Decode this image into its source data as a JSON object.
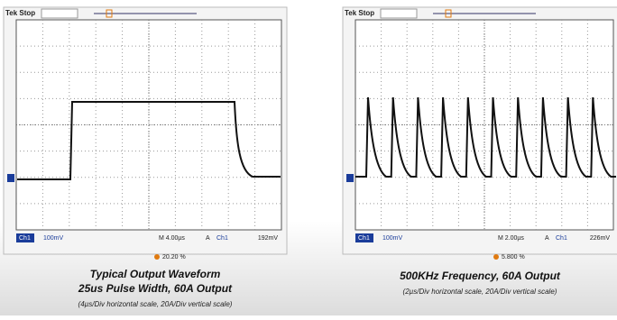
{
  "left": {
    "header": "Tek Stop",
    "channel": "Ch1",
    "volts": "100mV",
    "timebase": "M 4.00µs",
    "trigger_mode": "A",
    "trigger_channel": "Ch1",
    "trigger_level": "192mV",
    "position": "20.20 %"
  },
  "right": {
    "header": "Tek Stop",
    "channel": "Ch1",
    "volts": "100mV",
    "timebase": "M 2.00µs",
    "trigger_mode": "A",
    "trigger_channel": "Ch1",
    "trigger_level": "226mV",
    "position": "5.800 %"
  },
  "captions": {
    "left_title": "Typical Output Waveform",
    "left_subtitle": "25us Pulse Width, 60A Output",
    "left_note": "(4µs/Div horizontal scale, 20A/Div vertical scale)",
    "right_title": "500KHz Frequency, 60A Output",
    "right_note": "(2µs/Div horizontal scale, 20A/Div vertical scale)"
  }
}
